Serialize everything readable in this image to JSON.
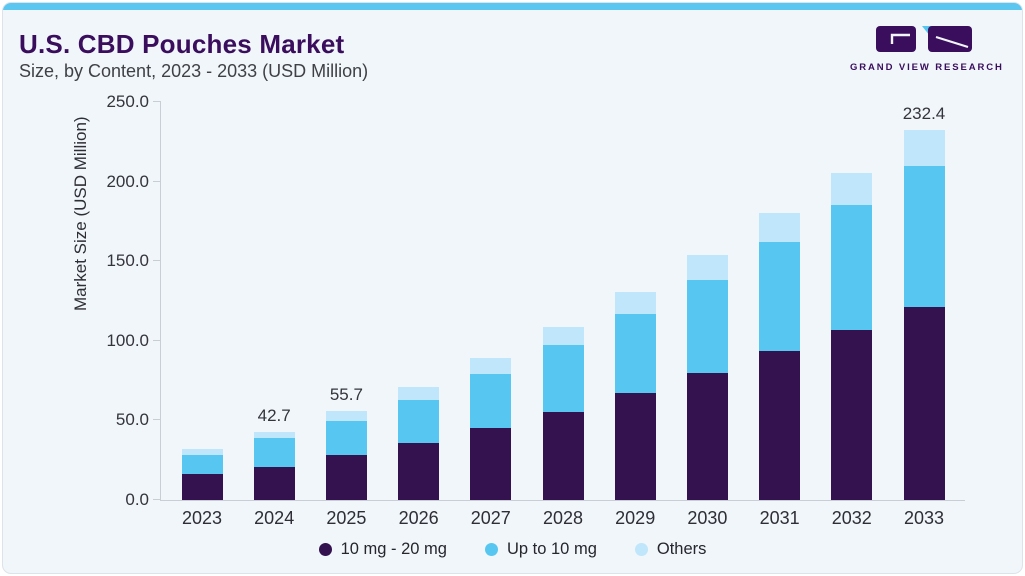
{
  "header": {
    "title": "U.S. CBD Pouches Market",
    "subtitle": "Size, by Content, 2023 - 2033 (USD Million)"
  },
  "logo": {
    "wordmark": "GRAND VIEW RESEARCH",
    "mark_purple": "#3a0d5d",
    "mark_blue": "#56c5f0"
  },
  "colors": {
    "accent_bar": "#5bc6f0",
    "card_background": "#f0f6fa",
    "axis_line": "#c9ced6"
  },
  "chart_data": {
    "type": "bar",
    "stacked": true,
    "title": "U.S. CBD Pouches Market Size, by Content, 2023 - 2033 (USD Million)",
    "xlabel": "",
    "ylabel": "Market Size (USD Million)",
    "ylim": [
      0,
      250
    ],
    "yticks": [
      "0.0",
      "50.0",
      "100.0",
      "150.0",
      "200.0",
      "250.0"
    ],
    "grid": false,
    "legend_position": "bottom",
    "categories": [
      "2023",
      "2024",
      "2025",
      "2026",
      "2027",
      "2028",
      "2029",
      "2030",
      "2031",
      "2032",
      "2033"
    ],
    "series": [
      {
        "name": "10 mg - 20 mg",
        "color": "#33124f",
        "values": [
          16.1,
          21.0,
          28.0,
          36.0,
          45.0,
          55.0,
          67.0,
          80.0,
          93.5,
          107.0,
          121.5
        ]
      },
      {
        "name": "Up to 10 mg",
        "color": "#57c7f2",
        "values": [
          12.3,
          17.9,
          21.6,
          27.0,
          34.0,
          42.5,
          50.0,
          58.5,
          68.5,
          78.5,
          88.0
        ]
      },
      {
        "name": "Others",
        "color": "#bfe6fa",
        "values": [
          3.8,
          3.8,
          6.1,
          8.0,
          10.0,
          11.0,
          13.5,
          15.5,
          18.0,
          20.0,
          22.9
        ]
      }
    ],
    "totals": [
      32.2,
      42.7,
      55.7,
      71.0,
      89.0,
      108.5,
      130.5,
      154.0,
      180.0,
      205.5,
      232.4
    ],
    "bar_labels": [
      null,
      "42.7",
      "55.7",
      null,
      null,
      null,
      null,
      null,
      null,
      null,
      "232.4"
    ]
  }
}
